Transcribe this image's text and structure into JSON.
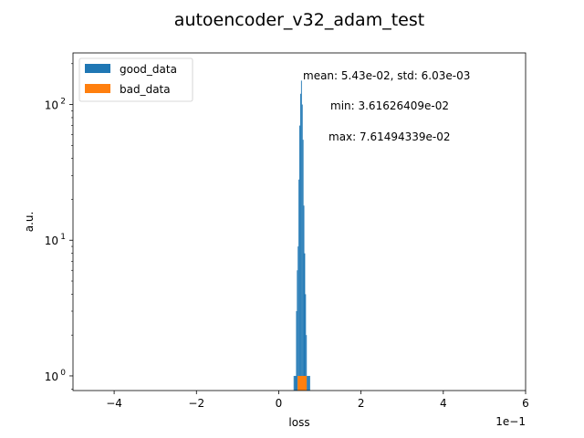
{
  "chart_data": {
    "type": "bar",
    "title": "autoencoder_v32_adam_test",
    "xlabel": "loss",
    "ylabel": "a.u.",
    "x_offset_label": "1e−1",
    "xlim": [
      -0.5,
      0.6
    ],
    "ylim": [
      0.78,
      240
    ],
    "yscale": "log",
    "x_ticks": [
      {
        "value": -0.4,
        "label": "−4"
      },
      {
        "value": -0.2,
        "label": "−2"
      },
      {
        "value": 0.0,
        "label": "0"
      },
      {
        "value": 0.2,
        "label": "2"
      },
      {
        "value": 0.4,
        "label": "4"
      },
      {
        "value": 0.6,
        "label": "6"
      }
    ],
    "y_ticks": [
      {
        "value": 1,
        "base": "10",
        "exp": "0"
      },
      {
        "value": 10,
        "base": "10",
        "exp": "1"
      },
      {
        "value": 100,
        "base": "10",
        "exp": "2"
      }
    ],
    "legend": {
      "position": "top-left",
      "entries": [
        {
          "name": "good_data",
          "color": "#1f77b4"
        },
        {
          "name": "bad_data",
          "color": "#ff7f0e"
        }
      ]
    },
    "annotations": [
      "mean: 5.43e-02, std: 6.03e-03",
      "min: 3.61626409e-02",
      "max: 7.61494339e-02"
    ],
    "series": [
      {
        "name": "good_data",
        "color": "#1f77b4",
        "bins": [
          {
            "x0": 0.0362,
            "x1": 0.0382,
            "value": 1
          },
          {
            "x0": 0.0382,
            "x1": 0.0402,
            "value": 1
          },
          {
            "x0": 0.0402,
            "x1": 0.0422,
            "value": 1
          },
          {
            "x0": 0.0422,
            "x1": 0.0442,
            "value": 3
          },
          {
            "x0": 0.0442,
            "x1": 0.0462,
            "value": 6
          },
          {
            "x0": 0.0462,
            "x1": 0.0482,
            "value": 9
          },
          {
            "x0": 0.0482,
            "x1": 0.0502,
            "value": 28
          },
          {
            "x0": 0.0502,
            "x1": 0.0522,
            "value": 70
          },
          {
            "x0": 0.0522,
            "x1": 0.0542,
            "value": 120
          },
          {
            "x0": 0.0542,
            "x1": 0.0562,
            "value": 150
          },
          {
            "x0": 0.0562,
            "x1": 0.0582,
            "value": 100
          },
          {
            "x0": 0.0582,
            "x1": 0.0602,
            "value": 55
          },
          {
            "x0": 0.0602,
            "x1": 0.0622,
            "value": 18
          },
          {
            "x0": 0.0622,
            "x1": 0.0642,
            "value": 8
          },
          {
            "x0": 0.0642,
            "x1": 0.0662,
            "value": 4
          },
          {
            "x0": 0.0662,
            "x1": 0.0682,
            "value": 2
          },
          {
            "x0": 0.0682,
            "x1": 0.0702,
            "value": 1
          },
          {
            "x0": 0.0702,
            "x1": 0.0722,
            "value": 1
          },
          {
            "x0": 0.0722,
            "x1": 0.0742,
            "value": 1
          },
          {
            "x0": 0.0742,
            "x1": 0.0762,
            "value": 1
          }
        ]
      },
      {
        "name": "bad_data",
        "color": "#ff7f0e",
        "bins": [
          {
            "x0": 0.046,
            "x1": 0.068,
            "value": 1
          }
        ]
      }
    ]
  }
}
